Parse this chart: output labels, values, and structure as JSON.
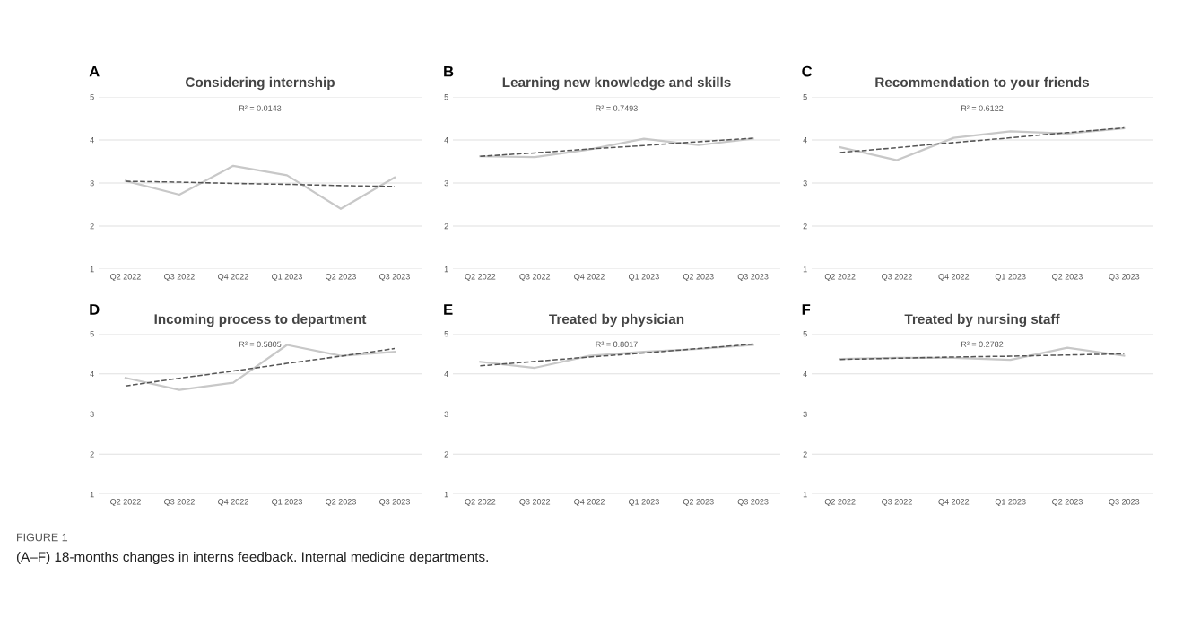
{
  "chart_data": [
    {
      "type": "line",
      "title": "Considering internship",
      "categories": [
        "Q2 2022",
        "Q3 2022",
        "Q4 2022",
        "Q1 2023",
        "Q2 2023",
        "Q3 2023"
      ],
      "ylim": [
        1,
        5
      ],
      "yticks": [
        1,
        2,
        3,
        4,
        5
      ],
      "grid": "y",
      "marker": "none",
      "series": [
        {
          "color": "#c8c8c8",
          "values": [
            3.05,
            2.73,
            3.4,
            3.18,
            2.4,
            3.13
          ]
        },
        {
          "color": "#555555",
          "line_style": "dashed",
          "values": [
            3.04,
            3.02,
            2.99,
            2.97,
            2.94,
            2.92
          ]
        }
      ],
      "annotations": [
        "A",
        "R² = 0.0143",
        "FIGURE 1",
        "(A–F) 18-months changes in interns feedback. Internal medicine departments."
      ]
    },
    {
      "type": "line",
      "title": "Learning new knowledge and skills",
      "categories": [
        "Q2 2022",
        "Q3 2022",
        "Q4 2022",
        "Q1 2023",
        "Q2 2023",
        "Q3 2023"
      ],
      "ylim": [
        1,
        5
      ],
      "yticks": [
        1,
        2,
        3,
        4,
        5
      ],
      "grid": "y",
      "marker": "none",
      "series": [
        {
          "color": "#c8c8c8",
          "values": [
            3.62,
            3.6,
            3.78,
            4.03,
            3.88,
            4.03
          ]
        },
        {
          "color": "#555555",
          "line_style": "dashed",
          "values": [
            3.62,
            3.7,
            3.79,
            3.87,
            3.96,
            4.04
          ]
        }
      ],
      "annotations": [
        "B",
        "R² = 0.7493"
      ]
    },
    {
      "type": "line",
      "title": "Recommendation to your friends",
      "categories": [
        "Q2 2022",
        "Q3 2022",
        "Q4 2022",
        "Q1 2023",
        "Q2 2023",
        "Q3 2023"
      ],
      "ylim": [
        1,
        5
      ],
      "yticks": [
        1,
        2,
        3,
        4,
        5
      ],
      "grid": "y",
      "marker": "none",
      "series": [
        {
          "color": "#c8c8c8",
          "values": [
            3.83,
            3.53,
            4.05,
            4.2,
            4.15,
            4.27
          ]
        },
        {
          "color": "#555555",
          "line_style": "dashed",
          "values": [
            3.71,
            3.82,
            3.94,
            4.05,
            4.17,
            4.28
          ]
        }
      ],
      "annotations": [
        "C",
        "R² = 0.6122"
      ]
    },
    {
      "type": "line",
      "title": "Incoming process to department",
      "categories": [
        "Q2 2022",
        "Q3 2022",
        "Q4 2022",
        "Q1 2023",
        "Q2 2023",
        "Q3 2023"
      ],
      "ylim": [
        1,
        5
      ],
      "yticks": [
        1,
        2,
        3,
        4,
        5
      ],
      "grid": "y",
      "marker": "none",
      "series": [
        {
          "color": "#c8c8c8",
          "values": [
            3.9,
            3.6,
            3.78,
            4.72,
            4.45,
            4.55
          ]
        },
        {
          "color": "#555555",
          "line_style": "dashed",
          "values": [
            3.7,
            3.89,
            4.07,
            4.26,
            4.44,
            4.63
          ]
        }
      ],
      "annotations": [
        "D",
        "R² = 0.5805"
      ]
    },
    {
      "type": "line",
      "title": "Treated by physician",
      "categories": [
        "Q2 2022",
        "Q3 2022",
        "Q4 2022",
        "Q1 2023",
        "Q2 2023",
        "Q3 2023"
      ],
      "ylim": [
        1,
        5
      ],
      "yticks": [
        1,
        2,
        3,
        4,
        5
      ],
      "grid": "y",
      "marker": "none",
      "series": [
        {
          "color": "#c8c8c8",
          "values": [
            4.3,
            4.15,
            4.45,
            4.55,
            4.62,
            4.72
          ]
        },
        {
          "color": "#555555",
          "line_style": "dashed",
          "values": [
            4.2,
            4.31,
            4.42,
            4.52,
            4.63,
            4.74
          ]
        }
      ],
      "annotations": [
        "E",
        "R² = 0.8017"
      ]
    },
    {
      "type": "line",
      "title": "Treated by nursing staff",
      "categories": [
        "Q2 2022",
        "Q3 2022",
        "Q4 2022",
        "Q1 2023",
        "Q2 2023",
        "Q3 2023"
      ],
      "ylim": [
        1,
        5
      ],
      "yticks": [
        1,
        2,
        3,
        4,
        5
      ],
      "grid": "y",
      "marker": "none",
      "series": [
        {
          "color": "#c8c8c8",
          "values": [
            4.37,
            4.4,
            4.4,
            4.35,
            4.65,
            4.45
          ]
        },
        {
          "color": "#555555",
          "line_style": "dashed",
          "values": [
            4.36,
            4.39,
            4.42,
            4.44,
            4.47,
            4.5
          ]
        }
      ],
      "annotations": [
        "F",
        "R² = 0.2782"
      ]
    }
  ]
}
